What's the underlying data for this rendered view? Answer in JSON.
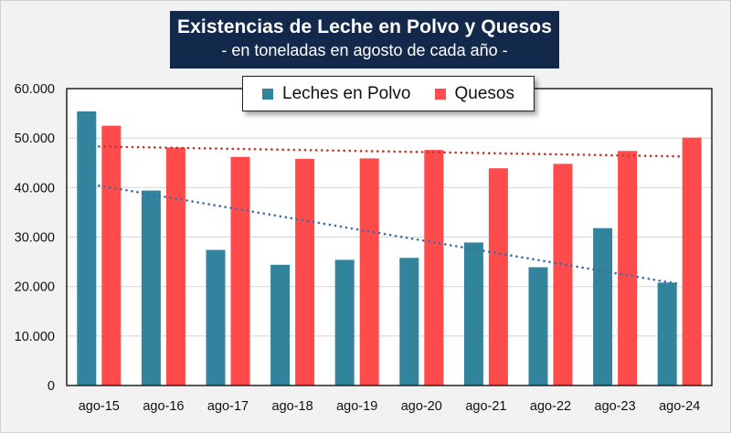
{
  "chart_data": {
    "type": "bar",
    "title": "Existencias de Leche en Polvo y Quesos",
    "subtitle": "- en toneladas en agosto de cada año -",
    "xlabel": "",
    "ylabel": "",
    "categories": [
      "ago-15",
      "ago-16",
      "ago-17",
      "ago-18",
      "ago-19",
      "ago-20",
      "ago-21",
      "ago-22",
      "ago-23",
      "ago-24"
    ],
    "series": [
      {
        "name": "Leches en Polvo",
        "color": "#31849b",
        "values": [
          55400,
          39400,
          27400,
          24400,
          25400,
          25800,
          28900,
          23900,
          31800,
          20800
        ]
      },
      {
        "name": "Quesos",
        "color": "#ff4b4b",
        "values": [
          52500,
          48100,
          46200,
          45800,
          45900,
          47600,
          43900,
          44800,
          47400,
          50100
        ]
      }
    ],
    "trendlines": [
      {
        "series": "Leches en Polvo",
        "type": "linear",
        "style": "dotted",
        "color": "#3a6ea5",
        "start": 40400,
        "end": 20500
      },
      {
        "series": "Quesos",
        "type": "linear",
        "style": "dotted",
        "color": "#c0392b",
        "start": 48300,
        "end": 46300
      }
    ],
    "ylim": [
      0,
      60000
    ],
    "yticks": [
      0,
      10000,
      20000,
      30000,
      40000,
      50000,
      60000
    ],
    "ytick_labels": [
      "0",
      "10.000",
      "20.000",
      "30.000",
      "40.000",
      "50.000",
      "60.000"
    ],
    "grid": true,
    "legend_position": "top-center"
  }
}
